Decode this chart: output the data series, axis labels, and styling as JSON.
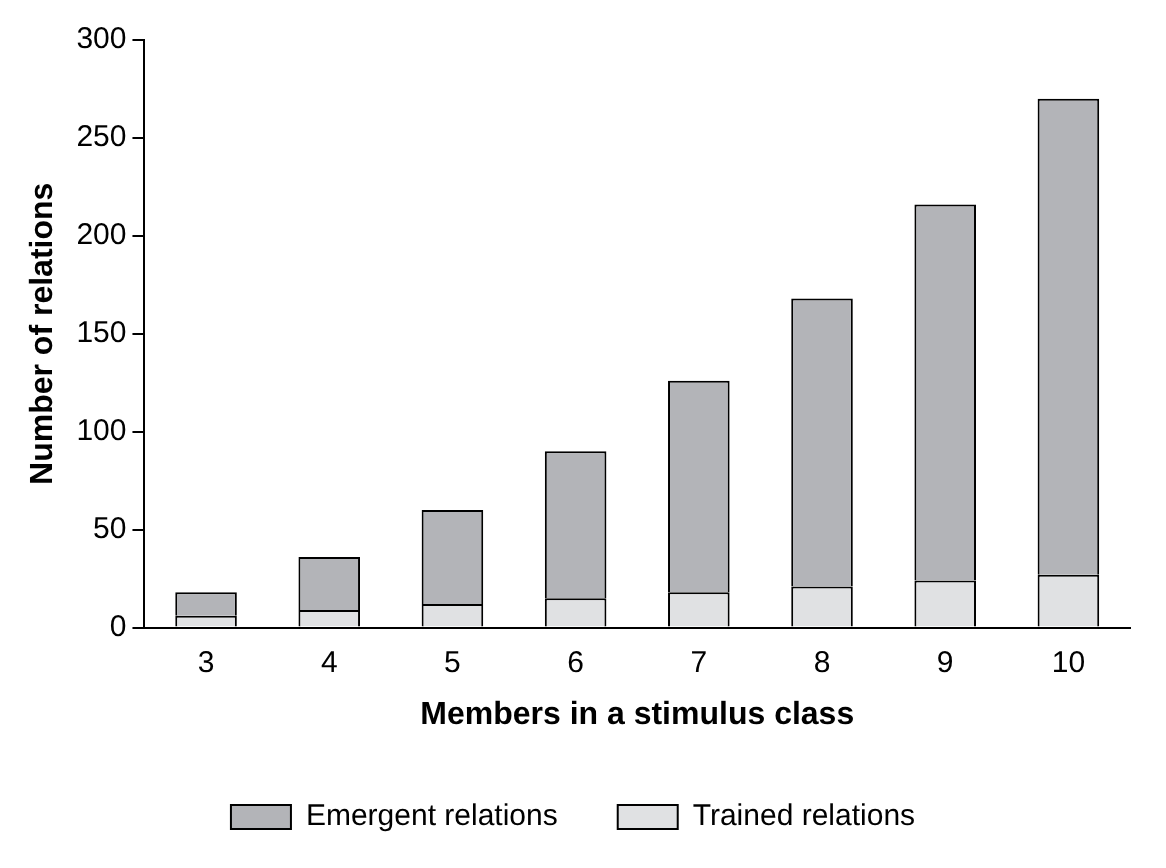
{
  "chart_data": {
    "type": "bar",
    "stacked": true,
    "xlabel": "Members in a stimulus class",
    "ylabel": "Number of relations",
    "categories": [
      "3",
      "4",
      "5",
      "6",
      "7",
      "8",
      "9",
      "10"
    ],
    "series": [
      {
        "name": "Trained relations",
        "color": "#e0e1e3",
        "values": [
          6,
          9,
          12,
          15,
          18,
          21,
          24,
          27
        ]
      },
      {
        "name": "Emergent relations",
        "color": "#b3b4b8",
        "values": [
          12,
          27,
          48,
          75,
          108,
          147,
          192,
          243
        ]
      }
    ],
    "ylim": [
      0,
      300
    ],
    "yticks": [
      0,
      50,
      100,
      150,
      200,
      250,
      300
    ],
    "grid": false,
    "legend": "bottom"
  }
}
